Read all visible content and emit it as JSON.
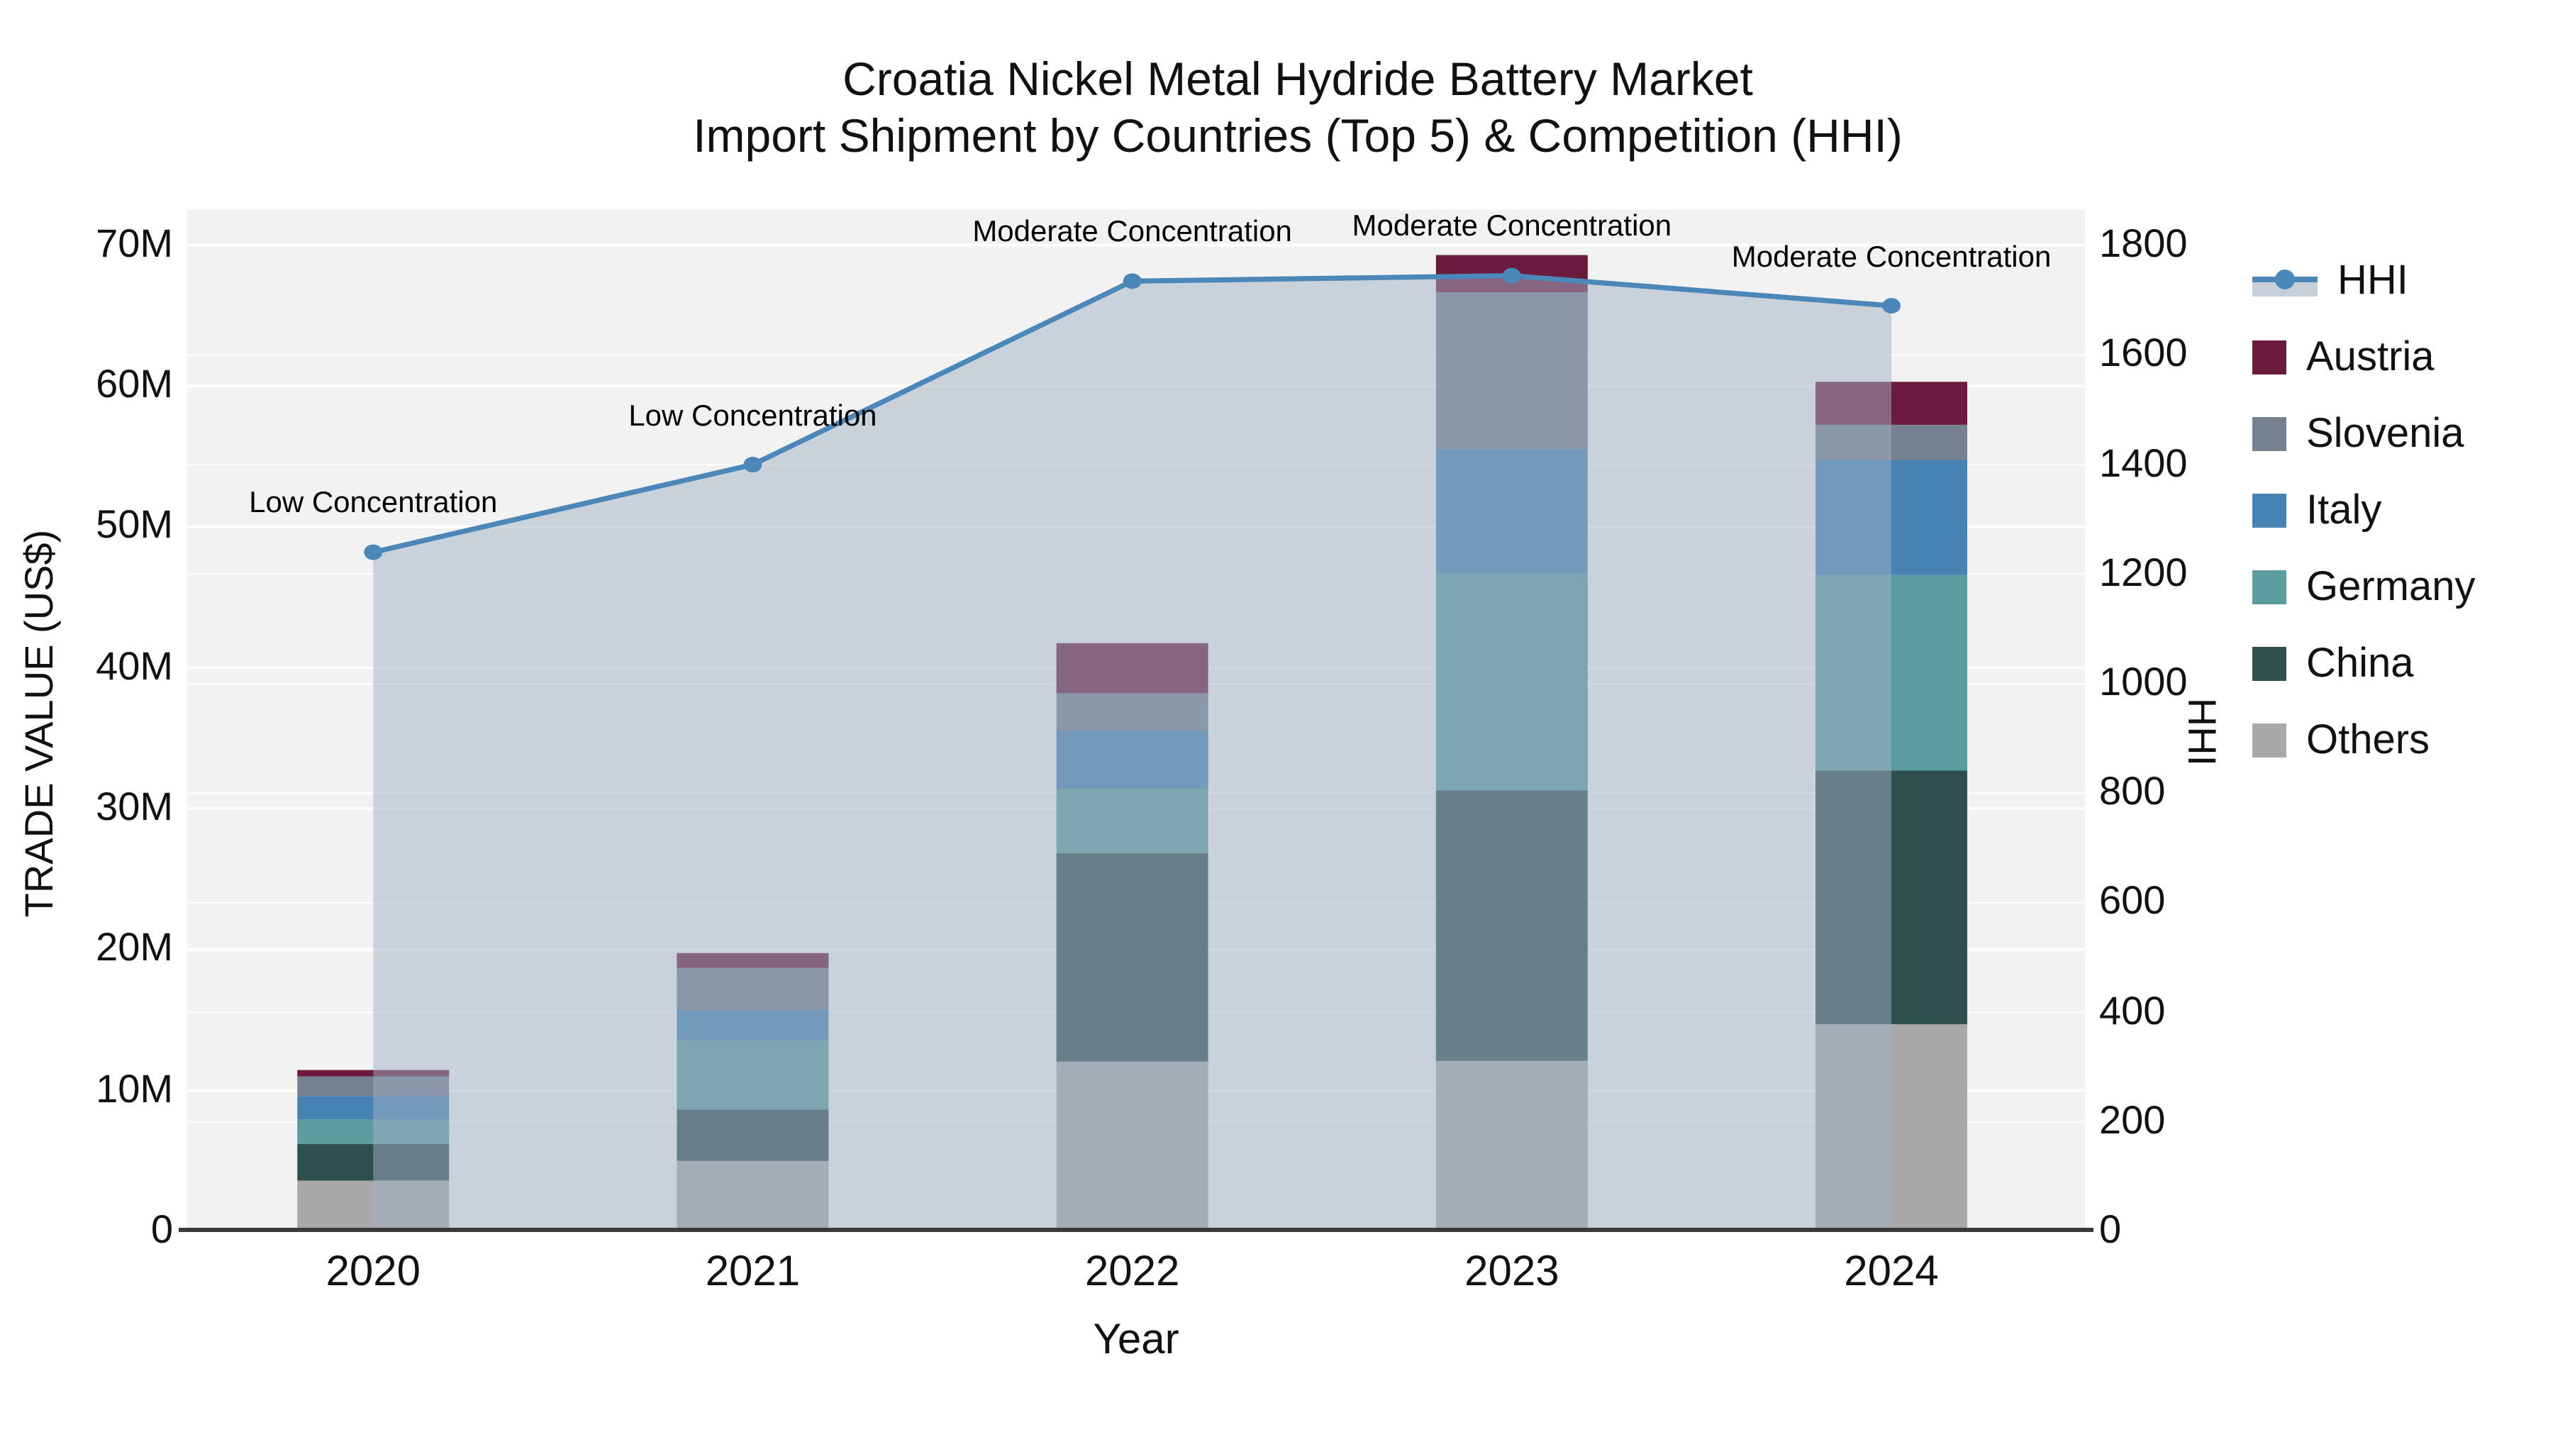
{
  "chart_data": {
    "type": "bar",
    "subtype": "stacked-bar-with-line-overlay",
    "title": "Croatia Nickel Metal Hydride Battery Market",
    "subtitle": "Import Shipment by Countries (Top 5) & Competition (HHI)",
    "xlabel": "Year",
    "ylabel_left": "TRADE VALUE (US$)",
    "ylabel_right": "HHI",
    "categories": [
      "2020",
      "2021",
      "2022",
      "2023",
      "2024"
    ],
    "series": [
      {
        "name": "Austria",
        "color": "#6b1b3d",
        "values": [
          0.45,
          1.05,
          3.55,
          2.65,
          3.05
        ]
      },
      {
        "name": "Slovenia",
        "color": "#75818f",
        "values": [
          1.4,
          3.0,
          2.65,
          11.1,
          2.5
        ]
      },
      {
        "name": "Italy",
        "color": "#4682b4",
        "values": [
          1.65,
          2.1,
          4.15,
          8.85,
          8.15
        ]
      },
      {
        "name": "Germany",
        "color": "#5b9c9e",
        "values": [
          1.75,
          4.95,
          4.55,
          15.4,
          13.9
        ]
      },
      {
        "name": "China",
        "color": "#2f4f4d",
        "values": [
          2.6,
          3.65,
          14.8,
          19.2,
          18.0
        ]
      },
      {
        "name": "Others",
        "color": "#a9a9a9",
        "values": [
          3.6,
          5.0,
          12.05,
          12.1,
          14.7
        ]
      }
    ],
    "stack_totals_millions": [
      11.45,
      19.75,
      41.75,
      69.3,
      60.3
    ],
    "line": {
      "name": "HHI",
      "values": [
        1240,
        1400,
        1735,
        1745,
        1690
      ],
      "color": "#4c87ba",
      "area_fill_color": "#9fb0c4",
      "area_fill_opacity": 0.5
    },
    "annotations": [
      {
        "x": "2020",
        "text": "Low Concentration"
      },
      {
        "x": "2021",
        "text": "Low Concentration"
      },
      {
        "x": "2022",
        "text": "Moderate Concentration"
      },
      {
        "x": "2023",
        "text": "Moderate Concentration"
      },
      {
        "x": "2024",
        "text": "Moderate Concentration"
      }
    ],
    "y_left_tick_labels": [
      "0",
      "10M",
      "20M",
      "30M",
      "40M",
      "50M",
      "60M",
      "70M"
    ],
    "y_left_tick_values": [
      0,
      10,
      20,
      30,
      40,
      50,
      60,
      70
    ],
    "y_left_max": 72.5,
    "y_right_tick_values": [
      0,
      200,
      400,
      600,
      800,
      1000,
      1200,
      1400,
      1600,
      1800
    ],
    "y_right_max": 1865,
    "grid": "on",
    "legend_position": "right",
    "plot_background": "#f2f2f2",
    "gridline_color": "#ffffff",
    "baseline_color": "#3a3a3a"
  }
}
